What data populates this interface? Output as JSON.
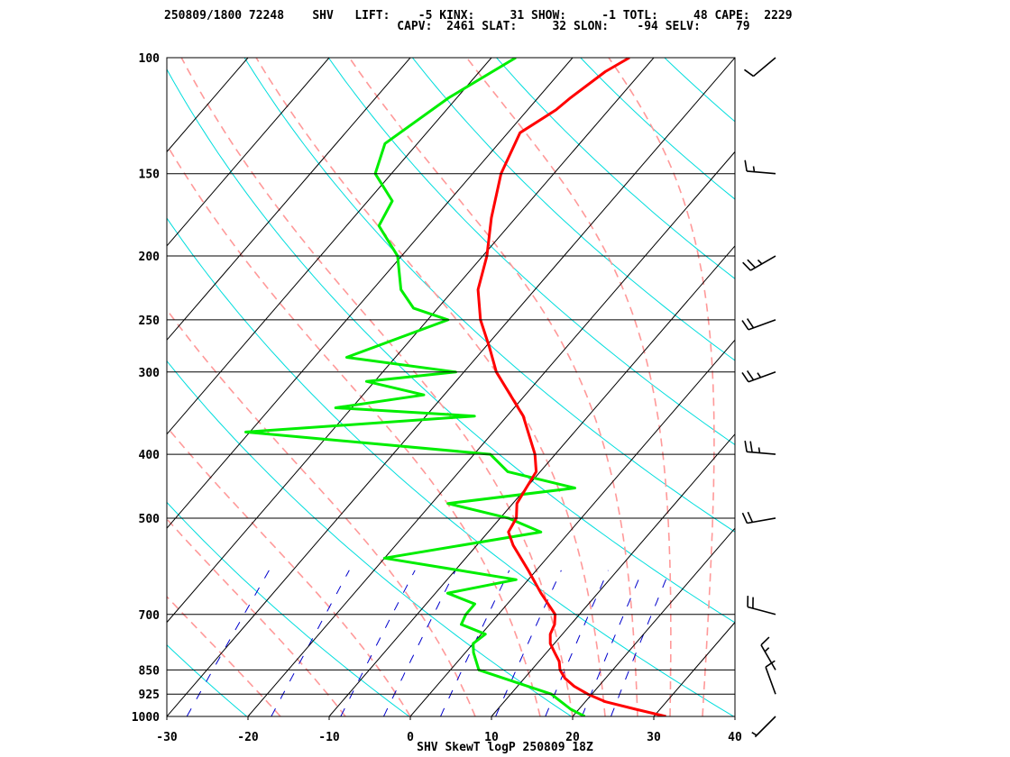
{
  "header": {
    "line1": "250809/1800 72248    SHV   LIFT:    -5 KINX:     31 SHOW:     -1 TOTL:     48 CAPE:  2229",
    "line2": "                                 CAPV:  2461 SLAT:     32 SLON:    -94 SELV:     79"
  },
  "colors": {
    "temperature": "#ff0000",
    "dewpoint": "#00ee00",
    "isotherm": "#000000",
    "dry_adiabat": "#00dddd",
    "moist_adiabat": "#ff9999",
    "mixing_ratio": "#0000cc",
    "wind_barb": "#000000"
  },
  "chart_data": {
    "type": "skewT",
    "title": "SHV SkewT logP 250809 18Z",
    "xlim": [
      -30,
      40
    ],
    "ylim": [
      1000,
      100
    ],
    "y_scale": "log",
    "x_ticks": [
      "-30",
      "-20",
      "-10",
      "0",
      "10",
      "20",
      "30",
      "40"
    ],
    "pressure_labels": [
      "100",
      "150",
      "200",
      "250",
      "300",
      "400",
      "500",
      "700",
      "850",
      "925",
      "1000"
    ],
    "temperature": [
      [
        1000,
        31.5
      ],
      [
        975,
        27.0
      ],
      [
        950,
        22.5
      ],
      [
        925,
        19.5
      ],
      [
        900,
        17.0
      ],
      [
        875,
        15.0
      ],
      [
        850,
        13.5
      ],
      [
        825,
        12.5
      ],
      [
        800,
        11.0
      ],
      [
        775,
        9.5
      ],
      [
        750,
        8.5
      ],
      [
        725,
        8.0
      ],
      [
        700,
        7.0
      ],
      [
        650,
        3.0
      ],
      [
        600,
        -1.0
      ],
      [
        550,
        -5.5
      ],
      [
        525,
        -7.5
      ],
      [
        500,
        -8.0
      ],
      [
        475,
        -9.5
      ],
      [
        450,
        -10.0
      ],
      [
        425,
        -10.5
      ],
      [
        400,
        -12.5
      ],
      [
        350,
        -18.0
      ],
      [
        300,
        -26.0
      ],
      [
        275,
        -29.5
      ],
      [
        250,
        -33.5
      ],
      [
        225,
        -37.0
      ],
      [
        200,
        -39.5
      ],
      [
        175,
        -43.0
      ],
      [
        150,
        -46.5
      ],
      [
        130,
        -48.5
      ],
      [
        120,
        -46.5
      ],
      [
        115,
        -46.0
      ],
      [
        105,
        -44.5
      ],
      [
        100,
        -43.0
      ]
    ],
    "dewpoint": [
      [
        1000,
        21.5
      ],
      [
        975,
        19.0
      ],
      [
        925,
        15.0
      ],
      [
        850,
        3.5
      ],
      [
        800,
        1.0
      ],
      [
        775,
        0.0
      ],
      [
        750,
        0.5
      ],
      [
        725,
        -3.5
      ],
      [
        700,
        -4.0
      ],
      [
        675,
        -4.0
      ],
      [
        650,
        -8.5
      ],
      [
        620,
        -1.5
      ],
      [
        575,
        -20.0
      ],
      [
        525,
        -3.5
      ],
      [
        500,
        -9.0
      ],
      [
        475,
        -18.0
      ],
      [
        450,
        -4.0
      ],
      [
        425,
        -14.0
      ],
      [
        400,
        -18.0
      ],
      [
        370,
        -50.5
      ],
      [
        350,
        -24.0
      ],
      [
        340,
        -42.0
      ],
      [
        325,
        -32.5
      ],
      [
        310,
        -41.0
      ],
      [
        300,
        -31.0
      ],
      [
        285,
        -46.0
      ],
      [
        250,
        -37.5
      ],
      [
        240,
        -43.0
      ],
      [
        225,
        -46.5
      ],
      [
        200,
        -50.5
      ],
      [
        180,
        -56.0
      ],
      [
        165,
        -57.0
      ],
      [
        150,
        -62.0
      ],
      [
        135,
        -64.0
      ],
      [
        115,
        -61.0
      ],
      [
        100,
        -57.0
      ]
    ],
    "wind_barbs": [
      {
        "p": 1000,
        "dir": 225,
        "kt": 5
      },
      {
        "p": 925,
        "dir": 340,
        "kt": 10
      },
      {
        "p": 850,
        "dir": 330,
        "kt": 15
      },
      {
        "p": 700,
        "dir": 285,
        "kt": 20
      },
      {
        "p": 500,
        "dir": 260,
        "kt": 20
      },
      {
        "p": 400,
        "dir": 275,
        "kt": 25
      },
      {
        "p": 300,
        "dir": 250,
        "kt": 25
      },
      {
        "p": 250,
        "dir": 250,
        "kt": 20
      },
      {
        "p": 200,
        "dir": 240,
        "kt": 25
      },
      {
        "p": 150,
        "dir": 275,
        "kt": 15
      },
      {
        "p": 100,
        "dir": 230,
        "kt": 10
      }
    ]
  }
}
